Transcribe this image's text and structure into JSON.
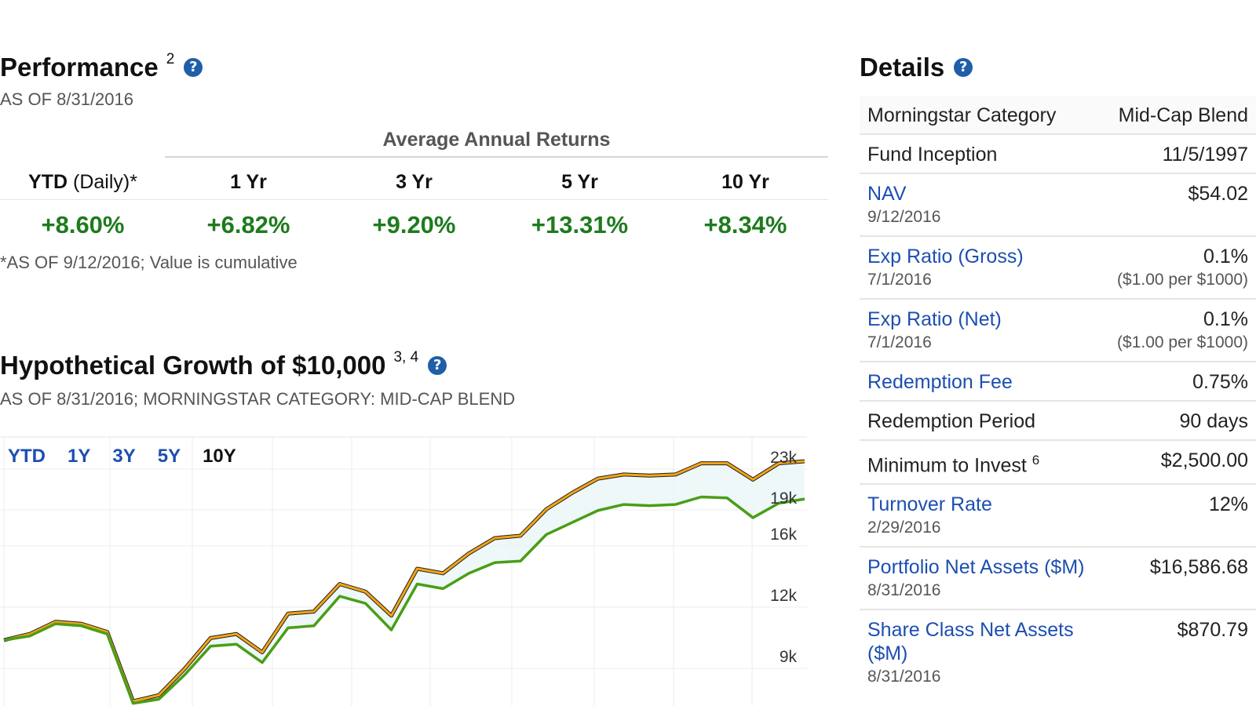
{
  "performance": {
    "title": "Performance",
    "footnote_ref": "2",
    "help_icon": "?",
    "as_of": "AS OF 8/31/2016",
    "avg_title": "Average Annual Returns",
    "columns": [
      {
        "bold": "YTD",
        "light": " (Daily)*"
      },
      {
        "bold": "1 Yr",
        "light": ""
      },
      {
        "bold": "3 Yr",
        "light": ""
      },
      {
        "bold": "5 Yr",
        "light": ""
      },
      {
        "bold": "10 Yr",
        "light": ""
      }
    ],
    "values": [
      "+8.60%",
      "+6.82%",
      "+9.20%",
      "+13.31%",
      "+8.34%"
    ],
    "value_color": "#1e7b1e",
    "footnote": "*AS OF 9/12/2016; Value is cumulative"
  },
  "growth": {
    "title": "Hypothetical Growth of $10,000",
    "footnote_ref": "3, 4",
    "help_icon": "?",
    "as_of": "AS OF 8/31/2016; MORNINGSTAR CATEGORY: MID-CAP BLEND",
    "ranges": [
      {
        "label": "YTD",
        "active": false
      },
      {
        "label": "1Y",
        "active": false
      },
      {
        "label": "3Y",
        "active": false
      },
      {
        "label": "5Y",
        "active": false
      },
      {
        "label": "10Y",
        "active": true
      }
    ]
  },
  "chart_data": {
    "type": "line",
    "y_ticks": [
      "23k",
      "19k",
      "16k",
      "12k",
      "9k"
    ],
    "y_tick_values": [
      23000,
      19000,
      16000,
      12000,
      9000
    ],
    "grid": true,
    "series": [
      {
        "color": "#f2a516",
        "values": [
          10000,
          10300,
          10900,
          10800,
          10400,
          7000,
          7300,
          8600,
          10100,
          10300,
          9400,
          11300,
          11400,
          13000,
          12500,
          11200,
          14000,
          13700,
          15000,
          16000,
          16200,
          18400,
          19900,
          21300,
          21700,
          21600,
          21700,
          22800,
          22800,
          21200,
          22800,
          23000
        ]
      },
      {
        "color": "#4a9e16",
        "values": [
          10000,
          10200,
          10800,
          10700,
          10300,
          6900,
          7100,
          8300,
          9700,
          9800,
          8900,
          10600,
          10700,
          12200,
          11800,
          10500,
          13000,
          12700,
          13700,
          14400,
          14500,
          16300,
          17300,
          18300,
          18800,
          18700,
          18800,
          19500,
          19400,
          17700,
          18900,
          19300
        ]
      }
    ]
  },
  "details": {
    "title": "Details",
    "help_icon": "?",
    "rows": [
      {
        "label": "Morningstar Category",
        "link": false,
        "sub": "",
        "value": "Mid-Cap Blend",
        "note": ""
      },
      {
        "label": "Fund Inception",
        "link": false,
        "sub": "",
        "value": "11/5/1997",
        "note": ""
      },
      {
        "label": "NAV",
        "link": true,
        "sub": "9/12/2016",
        "value": "$54.02",
        "note": ""
      },
      {
        "label": "Exp Ratio (Gross)",
        "link": true,
        "sub": "7/1/2016",
        "value": "0.1%",
        "note": "($1.00 per $1000)"
      },
      {
        "label": "Exp Ratio (Net)",
        "link": true,
        "sub": "7/1/2016",
        "value": "0.1%",
        "note": "($1.00 per $1000)"
      },
      {
        "label": "Redemption Fee",
        "link": true,
        "sub": "",
        "value": "0.75%",
        "note": ""
      },
      {
        "label": "Redemption Period",
        "link": false,
        "sub": "",
        "value": "90 days",
        "note": ""
      },
      {
        "label": "Minimum to Invest",
        "label_sup": "6",
        "link": false,
        "sub": "",
        "value": "$2,500.00",
        "note": ""
      },
      {
        "label": "Turnover Rate",
        "link": true,
        "sub": "2/29/2016",
        "value": "12%",
        "note": ""
      },
      {
        "label": "Portfolio Net Assets ($M)",
        "link": true,
        "sub": "8/31/2016",
        "value": "$16,586.68",
        "note": ""
      },
      {
        "label": "Share Class Net Assets ($M)",
        "link": true,
        "sub": "8/31/2016",
        "value": "$870.79",
        "note": ""
      }
    ]
  }
}
